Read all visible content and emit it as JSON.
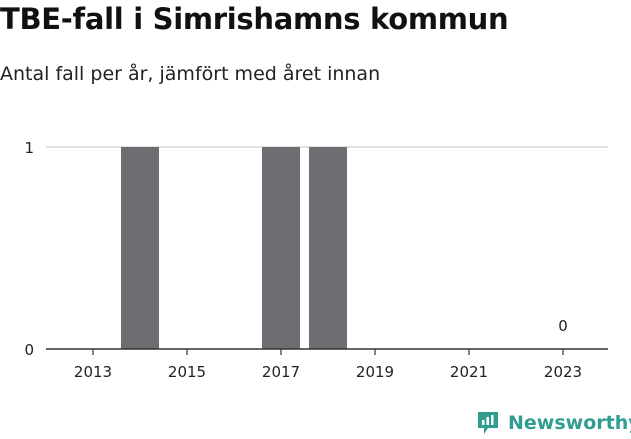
{
  "header": {
    "title": "TBE-fall i Simrishamns kommun",
    "subtitle": "Antal fall per år, jämfört med året innan"
  },
  "colors": {
    "bar": "#6e6d72",
    "grid": "#d9d9d9",
    "axis": "#333333",
    "brand": "#2f9d8f"
  },
  "logo": {
    "text": "Newsworthy",
    "icon": "newsworthy-chart-icon"
  },
  "chart_data": {
    "type": "bar",
    "title": "TBE-fall i Simrishamns kommun",
    "subtitle": "Antal fall per år, jämfört med året innan",
    "xlabel": "",
    "ylabel": "",
    "categories": [
      2013,
      2014,
      2015,
      2016,
      2017,
      2018,
      2019,
      2020,
      2021,
      2022,
      2023
    ],
    "values": [
      0,
      1,
      0,
      0,
      1,
      1,
      0,
      0,
      0,
      0,
      0
    ],
    "x_ticks": [
      "2013",
      "2015",
      "2017",
      "2019",
      "2021",
      "2023"
    ],
    "y_ticks": [
      "0",
      "1"
    ],
    "ylim": [
      0,
      1
    ],
    "grid": true,
    "annotations": [
      {
        "category": 2023,
        "text": "0"
      }
    ]
  }
}
